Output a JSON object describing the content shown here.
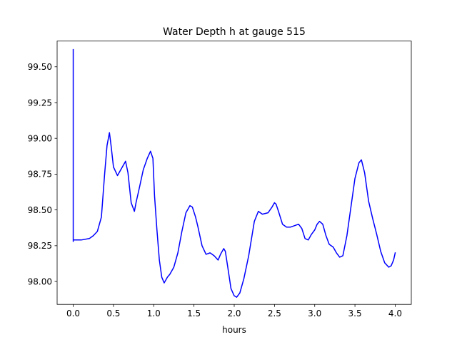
{
  "chart_data": {
    "type": "line",
    "title": "Water Depth h at gauge 515",
    "xlabel": "hours",
    "ylabel": "",
    "xlim": [
      -0.2,
      4.2
    ],
    "ylim": [
      97.84,
      99.68
    ],
    "xticks": [
      0.0,
      0.5,
      1.0,
      1.5,
      2.0,
      2.5,
      3.0,
      3.5,
      4.0
    ],
    "xtick_labels": [
      "0.0",
      "0.5",
      "1.0",
      "1.5",
      "2.0",
      "2.5",
      "3.0",
      "3.5",
      "4.0"
    ],
    "yticks": [
      98.0,
      98.25,
      98.5,
      98.75,
      99.0,
      99.25,
      99.5
    ],
    "ytick_labels": [
      "98.00",
      "98.25",
      "98.50",
      "98.75",
      "99.00",
      "99.25",
      "99.50"
    ],
    "grid": false,
    "series": [
      {
        "color": "#0000ff",
        "x": [
          0.0,
          0.0,
          0.0,
          0.1,
          0.2,
          0.25,
          0.3,
          0.35,
          0.39,
          0.42,
          0.45,
          0.47,
          0.5,
          0.55,
          0.6,
          0.65,
          0.68,
          0.72,
          0.76,
          0.78,
          0.82,
          0.87,
          0.92,
          0.96,
          0.99,
          1.01,
          1.04,
          1.07,
          1.1,
          1.13,
          1.17,
          1.2,
          1.25,
          1.3,
          1.35,
          1.4,
          1.45,
          1.48,
          1.52,
          1.55,
          1.6,
          1.65,
          1.7,
          1.75,
          1.8,
          1.83,
          1.87,
          1.89,
          1.92,
          1.96,
          2.0,
          2.03,
          2.07,
          2.12,
          2.18,
          2.25,
          2.3,
          2.35,
          2.42,
          2.47,
          2.5,
          2.52,
          2.55,
          2.6,
          2.65,
          2.7,
          2.75,
          2.8,
          2.84,
          2.88,
          2.92,
          2.96,
          3.0,
          3.03,
          3.06,
          3.1,
          3.14,
          3.18,
          3.23,
          3.27,
          3.31,
          3.35,
          3.4,
          3.45,
          3.5,
          3.55,
          3.58,
          3.62,
          3.67,
          3.72,
          3.77,
          3.82,
          3.87,
          3.92,
          3.95,
          3.98,
          4.0
        ],
        "y": [
          99.62,
          98.28,
          98.29,
          98.29,
          98.3,
          98.32,
          98.35,
          98.45,
          98.75,
          98.95,
          99.04,
          98.95,
          98.8,
          98.74,
          98.79,
          98.84,
          98.76,
          98.55,
          98.49,
          98.55,
          98.65,
          98.78,
          98.86,
          98.91,
          98.86,
          98.6,
          98.36,
          98.15,
          98.03,
          97.99,
          98.03,
          98.05,
          98.1,
          98.2,
          98.35,
          98.48,
          98.53,
          98.52,
          98.45,
          98.38,
          98.25,
          98.19,
          98.2,
          98.18,
          98.15,
          98.19,
          98.23,
          98.21,
          98.1,
          97.95,
          97.9,
          97.89,
          97.92,
          98.02,
          98.18,
          98.42,
          98.49,
          98.47,
          98.48,
          98.52,
          98.55,
          98.54,
          98.49,
          98.4,
          98.38,
          98.38,
          98.39,
          98.4,
          98.37,
          98.3,
          98.29,
          98.33,
          98.36,
          98.4,
          98.42,
          98.4,
          98.32,
          98.26,
          98.24,
          98.2,
          98.17,
          98.18,
          98.32,
          98.52,
          98.72,
          98.83,
          98.85,
          98.76,
          98.56,
          98.44,
          98.33,
          98.21,
          98.13,
          98.1,
          98.11,
          98.15,
          98.2
        ]
      }
    ]
  }
}
